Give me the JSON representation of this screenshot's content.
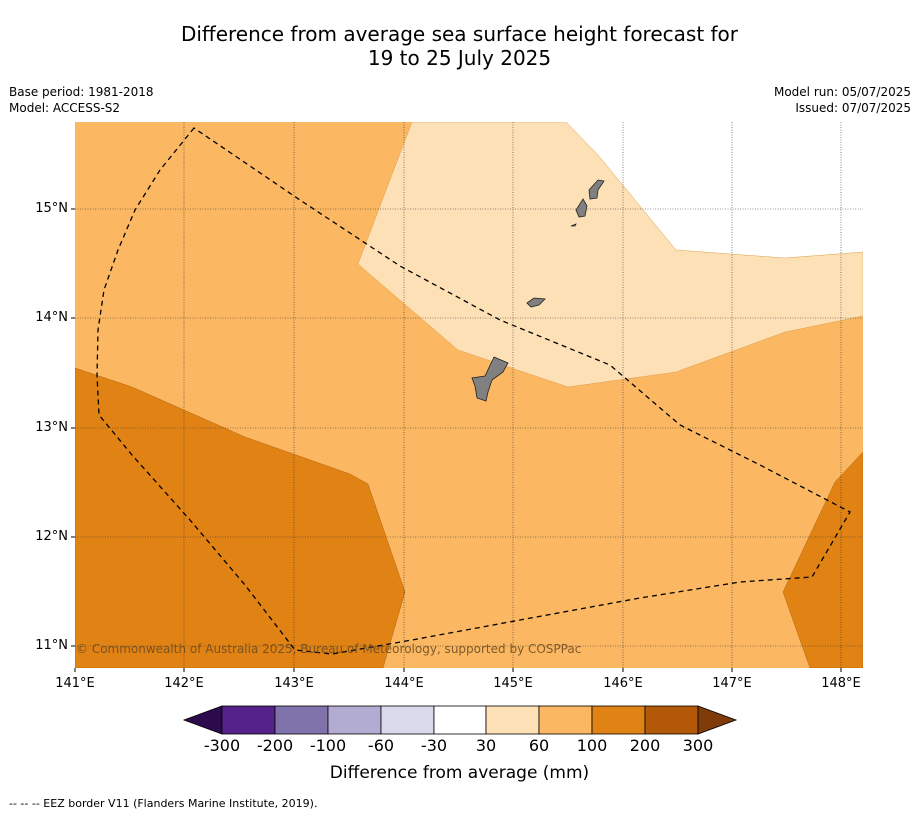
{
  "title_line1": "Difference from average sea surface height forecast for",
  "title_line2": "19 to 25 July 2025",
  "base_period": "Base period: 1981-2018",
  "model": "Model: ACCESS-S2",
  "model_run": "Model run: 05/07/2025",
  "issued": "Issued: 07/07/2025",
  "copyright": "© Commonwealth of Australia 2025, Bureau of Meteorology, supported by COSPPac",
  "eez_legend": "--  --  -- EEZ border V11 (Flanders Marine Institute, 2019).",
  "lat_labels": [
    "15°N",
    "14°N",
    "13°N",
    "12°N",
    "11°N"
  ],
  "lon_labels": [
    "141°E",
    "142°E",
    "143°E",
    "144°E",
    "145°E",
    "146°E",
    "147°E",
    "148°E"
  ],
  "colorbar": {
    "title": "Difference from average (mm)",
    "tick_labels": [
      "-300",
      "-200",
      "-100",
      "-60",
      "-30",
      "30",
      "60",
      "100",
      "200",
      "300"
    ],
    "colors": [
      "#2d0a4e",
      "#542288",
      "#8073ac",
      "#b2abd2",
      "#d8daeb",
      "#ffffff",
      "#fee0b6",
      "#fbb761",
      "#e08214",
      "#b35806",
      "#7f3b08"
    ]
  },
  "colors": {
    "band_60_100": "#fbb761",
    "band_30_60": "#fee0b6",
    "band_100_200": "#e08214",
    "band_neutral": "#ffffff",
    "land": "#808080"
  }
}
